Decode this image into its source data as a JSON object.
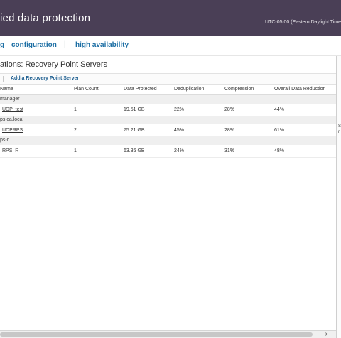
{
  "header": {
    "app_title": "ied data protection",
    "timezone": "UTC-05:00 (Eastern Daylight Time"
  },
  "nav": {
    "partial_item": "g",
    "configuration": "configuration",
    "separator": "|",
    "high_availability": "high availability"
  },
  "panel": {
    "title": "ations: Recovery Point Servers",
    "toolbar": {
      "add_rps": "Add a Recovery Point Server"
    }
  },
  "table": {
    "columns": [
      "Name",
      "Plan Count",
      "Data Protected",
      "Deduplication",
      "Compression",
      "Overall Data Reduction"
    ],
    "groups": [
      {
        "label": "manager",
        "rows": [
          {
            "name": "UDP_test",
            "plan_count": "1",
            "data_protected": "19.51 GB",
            "dedup": "22%",
            "compression": "28%",
            "overall": "44%"
          }
        ]
      },
      {
        "label": "ps.ca.local",
        "rows": [
          {
            "name": "UDPRPS",
            "plan_count": "2",
            "data_protected": "75.21 GB",
            "dedup": "45%",
            "compression": "28%",
            "overall": "61%"
          }
        ]
      },
      {
        "label": "ps-r",
        "rows": [
          {
            "name": "RPS_R",
            "plan_count": "1",
            "data_protected": "63.36 GB",
            "dedup": "24%",
            "compression": "31%",
            "overall": "48%"
          }
        ]
      }
    ]
  },
  "right_panel": {
    "frag1": "S",
    "frag2": "r"
  },
  "scrollbar": {
    "right_arrow": "›"
  },
  "colors": {
    "header_bg": "#4a3f56",
    "link": "#1c6ea4"
  },
  "icons": {
    "scroll_right": "chevron-right-icon"
  }
}
